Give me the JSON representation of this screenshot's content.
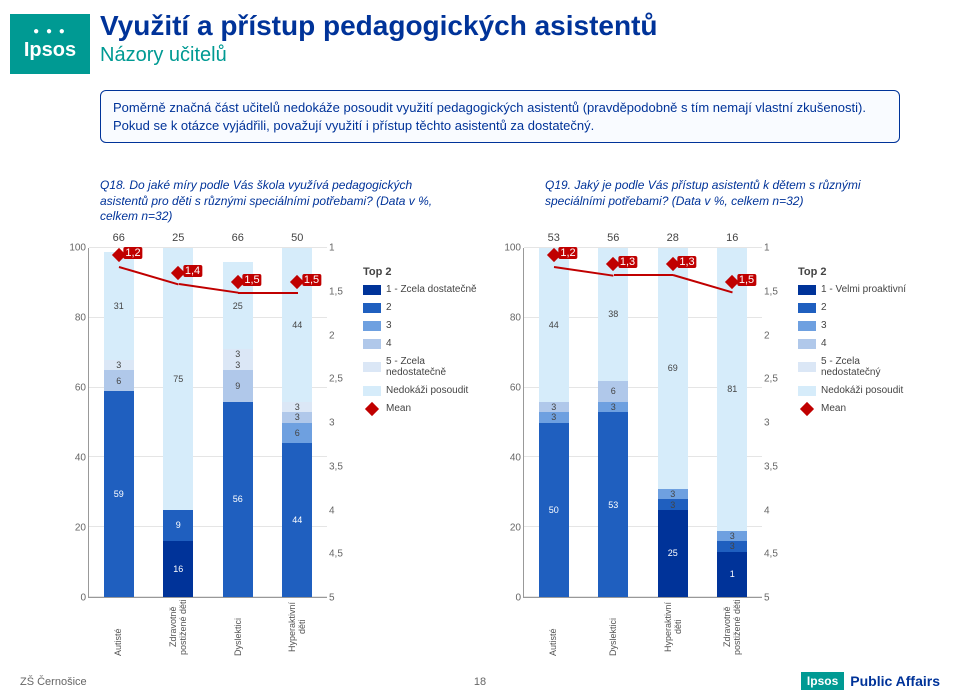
{
  "brand": {
    "name": "Ipsos",
    "footer_brand": "Ipsos",
    "footer_sub": "Public Affairs"
  },
  "header": {
    "title": "Využití a přístup pedagogických asistentů",
    "subtitle": "Názory učitelů"
  },
  "textbox": "Poměrně značná část učitelů nedokáže posoudit využití pedagogických asistentů (pravděpodobně s tím nemají vlastní zkušenosti). Pokud se k otázce vyjádřili, považují využití i přístup těchto asistentů za dostatečný.",
  "q_left": "Q18. Do jaké míry podle Vás škola využívá pedagogických asistentů pro děti s různými speciálními potřebami? (Data v %, celkem n=32)",
  "q_right": "Q19. Jaký je podle Vás přístup asistentů k dětem s různými speciálními potřebami? (Data v %, celkem n=32)",
  "chart_left": {
    "ylim": [
      0,
      100
    ],
    "y_ticks": [
      0,
      20,
      40,
      60,
      80,
      100
    ],
    "mean_lim": [
      1,
      5
    ],
    "mean_ticks": [
      1,
      1.5,
      2,
      2.5,
      3,
      3.5,
      4,
      4.5,
      5
    ],
    "categories": [
      "Autisté",
      "Zdravotně postižené děti",
      "Dyslektici",
      "Hyperaktivní děti"
    ],
    "top2_label": "Top 2",
    "legend_title": "Top 2",
    "legend": [
      {
        "label": "1 - Zcela dostatečně",
        "color": "#003399"
      },
      {
        "label": "2",
        "color": "#1f5fbf"
      },
      {
        "label": "3",
        "color": "#6ea0e0"
      },
      {
        "label": "4",
        "color": "#b0c8ea"
      },
      {
        "label": "5 - Zcela nedostatečně",
        "color": "#dbe7f6"
      },
      {
        "label": "Nedokáži posoudit",
        "color": "#d6ecfa"
      }
    ],
    "mean_legend": "Mean",
    "series": [
      {
        "top2": 66,
        "segs": [
          {
            "v": 59,
            "c": "#1f5fbf"
          },
          {
            "v": 6,
            "c": "#b0c8ea",
            "dark": true
          },
          {
            "v": 3,
            "c": "#dbe7f6",
            "dark": true
          },
          {
            "v": 31,
            "c": "#d6ecfa",
            "dark": true
          }
        ],
        "mean": 1.2
      },
      {
        "top2": 25,
        "segs": [
          {
            "v": 16,
            "c": "#003399"
          },
          {
            "v": 9,
            "c": "#1f5fbf"
          },
          {
            "v": 75,
            "c": "#d6ecfa",
            "dark": true
          }
        ],
        "mean": 1.4
      },
      {
        "top2": 66,
        "segs": [
          {
            "v": 56,
            "c": "#1f5fbf"
          },
          {
            "v": 9,
            "c": "#b0c8ea",
            "dark": true
          },
          {
            "v": 3,
            "c": "#dbe7f6",
            "dark": true
          },
          {
            "v": 3,
            "c": "#dbe7f6",
            "dark": true
          },
          {
            "v": 25,
            "c": "#d6ecfa",
            "dark": true
          }
        ],
        "mean": 1.5
      },
      {
        "top2": 50,
        "segs": [
          {
            "v": 44,
            "c": "#1f5fbf"
          },
          {
            "v": 6,
            "c": "#6ea0e0",
            "dark": true
          },
          {
            "v": 3,
            "c": "#b0c8ea",
            "dark": true
          },
          {
            "v": 3,
            "c": "#dbe7f6",
            "dark": true
          },
          {
            "v": 44,
            "c": "#d6ecfa",
            "dark": true
          }
        ],
        "mean": 1.5
      }
    ]
  },
  "chart_right": {
    "ylim": [
      0,
      100
    ],
    "y_ticks": [
      0,
      20,
      40,
      60,
      80,
      100
    ],
    "mean_lim": [
      1,
      5
    ],
    "mean_ticks": [
      1,
      1.5,
      2,
      2.5,
      3,
      3.5,
      4,
      4.5,
      5
    ],
    "categories": [
      "Autisté",
      "Dyslektici",
      "Hyperaktivní děti",
      "Zdravotně postižené děti"
    ],
    "top2_label": "Top 2",
    "legend_title": "Top 2",
    "legend": [
      {
        "label": "1 - Velmi proaktivní",
        "color": "#003399"
      },
      {
        "label": "2",
        "color": "#1f5fbf"
      },
      {
        "label": "3",
        "color": "#6ea0e0"
      },
      {
        "label": "4",
        "color": "#b0c8ea"
      },
      {
        "label": "5 - Zcela nedostatečný",
        "color": "#dbe7f6"
      },
      {
        "label": "Nedokáži posoudit",
        "color": "#d6ecfa"
      }
    ],
    "mean_legend": "Mean",
    "series": [
      {
        "top2": 53,
        "segs": [
          {
            "v": 50,
            "c": "#1f5fbf"
          },
          {
            "v": 3,
            "c": "#6ea0e0",
            "dark": true
          },
          {
            "v": 3,
            "c": "#b0c8ea",
            "dark": true
          },
          {
            "v": 44,
            "c": "#d6ecfa",
            "dark": true
          }
        ],
        "mean": 1.2
      },
      {
        "top2": 56,
        "segs": [
          {
            "v": 53,
            "c": "#1f5fbf"
          },
          {
            "v": 3,
            "c": "#6ea0e0",
            "dark": true
          },
          {
            "v": 6,
            "c": "#b0c8ea",
            "dark": true
          },
          {
            "v": 38,
            "c": "#d6ecfa",
            "dark": true
          }
        ],
        "mean": 1.3
      },
      {
        "top2": 28,
        "segs": [
          {
            "v": 25,
            "c": "#003399"
          },
          {
            "v": 3,
            "c": "#1f5fbf",
            "dark": true
          },
          {
            "v": 3,
            "c": "#6ea0e0",
            "dark": true
          },
          {
            "v": 69,
            "c": "#d6ecfa",
            "dark": true
          }
        ],
        "mean": 1.3
      },
      {
        "top2": 16,
        "segs": [
          {
            "v": 13,
            "c": "#003399",
            "label": "1"
          },
          {
            "v": 3,
            "c": "#1f5fbf",
            "dark": true
          },
          {
            "v": 3,
            "c": "#6ea0e0",
            "dark": true
          },
          {
            "v": 81,
            "c": "#d6ecfa",
            "dark": true
          }
        ],
        "mean": 1.5
      }
    ]
  },
  "footer": {
    "left": "ZŠ Černošice",
    "page": "18"
  },
  "colors": {
    "accent": "#009a93",
    "brand": "#003399",
    "mean": "#c00000"
  }
}
